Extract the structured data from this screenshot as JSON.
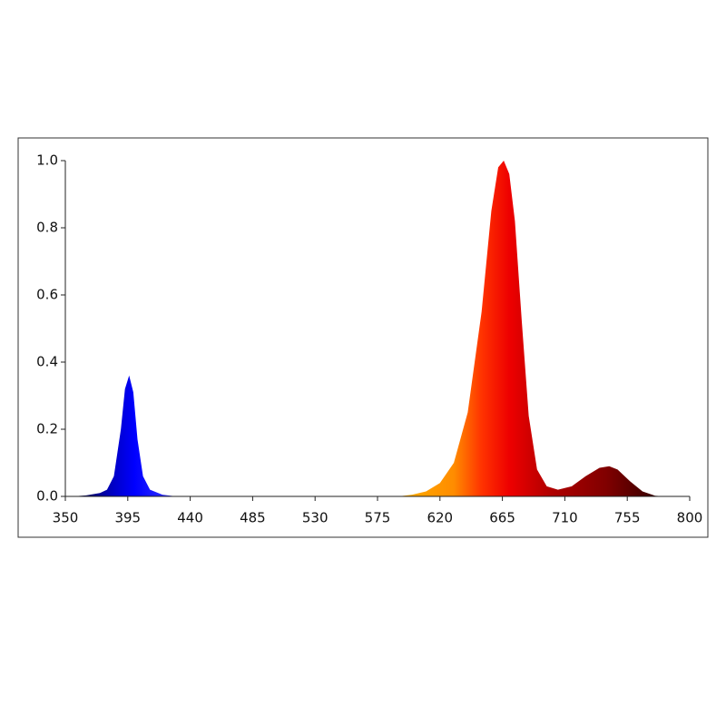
{
  "chart_data": {
    "type": "area",
    "x": [
      355,
      365,
      375,
      380,
      385,
      390,
      393,
      396,
      399,
      402,
      406,
      411,
      420,
      430,
      500,
      590,
      600,
      610,
      620,
      630,
      640,
      650,
      657,
      662,
      666,
      670,
      674,
      679,
      684,
      690,
      697,
      705,
      715,
      725,
      735,
      742,
      748,
      757,
      766,
      775,
      782
    ],
    "series": [
      {
        "values": [
          0,
          0.003,
          0.01,
          0.02,
          0.06,
          0.2,
          0.32,
          0.36,
          0.31,
          0.17,
          0.06,
          0.02,
          0.005,
          0,
          null,
          0,
          0.005,
          0.015,
          0.04,
          0.1,
          0.25,
          0.55,
          0.85,
          0.98,
          1.0,
          0.96,
          0.82,
          0.52,
          0.24,
          0.08,
          0.03,
          0.02,
          0.03,
          0.06,
          0.085,
          0.09,
          0.08,
          0.045,
          0.015,
          0.002,
          0
        ]
      }
    ],
    "color_stops": [
      {
        "x": 355,
        "color": "#0a0a30"
      },
      {
        "x": 385,
        "color": "#0000c8"
      },
      {
        "x": 400,
        "color": "#0000ff"
      },
      {
        "x": 430,
        "color": "#3a3aff"
      },
      {
        "x": 590,
        "color": "#ffb000"
      },
      {
        "x": 630,
        "color": "#ff8c00"
      },
      {
        "x": 650,
        "color": "#ff3300"
      },
      {
        "x": 670,
        "color": "#ee0000"
      },
      {
        "x": 700,
        "color": "#b00000"
      },
      {
        "x": 740,
        "color": "#800000"
      },
      {
        "x": 782,
        "color": "#2a0000"
      }
    ],
    "xlim": [
      350,
      800
    ],
    "xticks": [
      350,
      395,
      440,
      485,
      530,
      575,
      620,
      665,
      710,
      755,
      800
    ],
    "ylim": [
      0,
      1.0
    ],
    "yticks": [
      {
        "value": 0,
        "label": "0.0"
      },
      0.2,
      0.4,
      0.6,
      0.8,
      {
        "value": 1.0,
        "label": "1.0"
      }
    ]
  }
}
